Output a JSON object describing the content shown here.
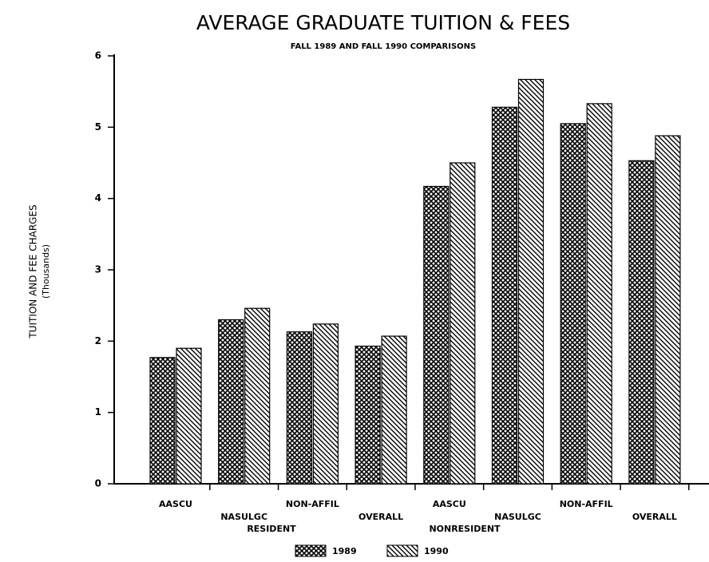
{
  "chart_data": {
    "type": "bar",
    "title": "AVERAGE GRADUATE TUITION & FEES",
    "subtitle": "FALL 1989 AND FALL 1990 COMPARISONS",
    "y_label": "TUITION AND FEE CHARGES",
    "y_label_units": "(Thousands)",
    "categories": [
      "AASCU",
      "NASULGC",
      "NON-AFFIL",
      "OVERALL",
      "AASCU",
      "NASULGC",
      "NON-AFFIL",
      "OVERALL"
    ],
    "groups": [
      "RESIDENT",
      "NONRESIDENT"
    ],
    "series": [
      {
        "name": "1989",
        "color": "#000000",
        "values": [
          1.77,
          2.3,
          2.13,
          1.93,
          4.17,
          5.28,
          5.05,
          4.53
        ]
      },
      {
        "name": "1990",
        "color": "#000000",
        "values": [
          1.9,
          2.46,
          2.24,
          2.07,
          4.5,
          5.67,
          5.33,
          4.88
        ]
      }
    ],
    "ylim": [
      0,
      6
    ],
    "yticks": [
      0,
      1,
      2,
      3,
      4,
      5,
      6
    ]
  }
}
